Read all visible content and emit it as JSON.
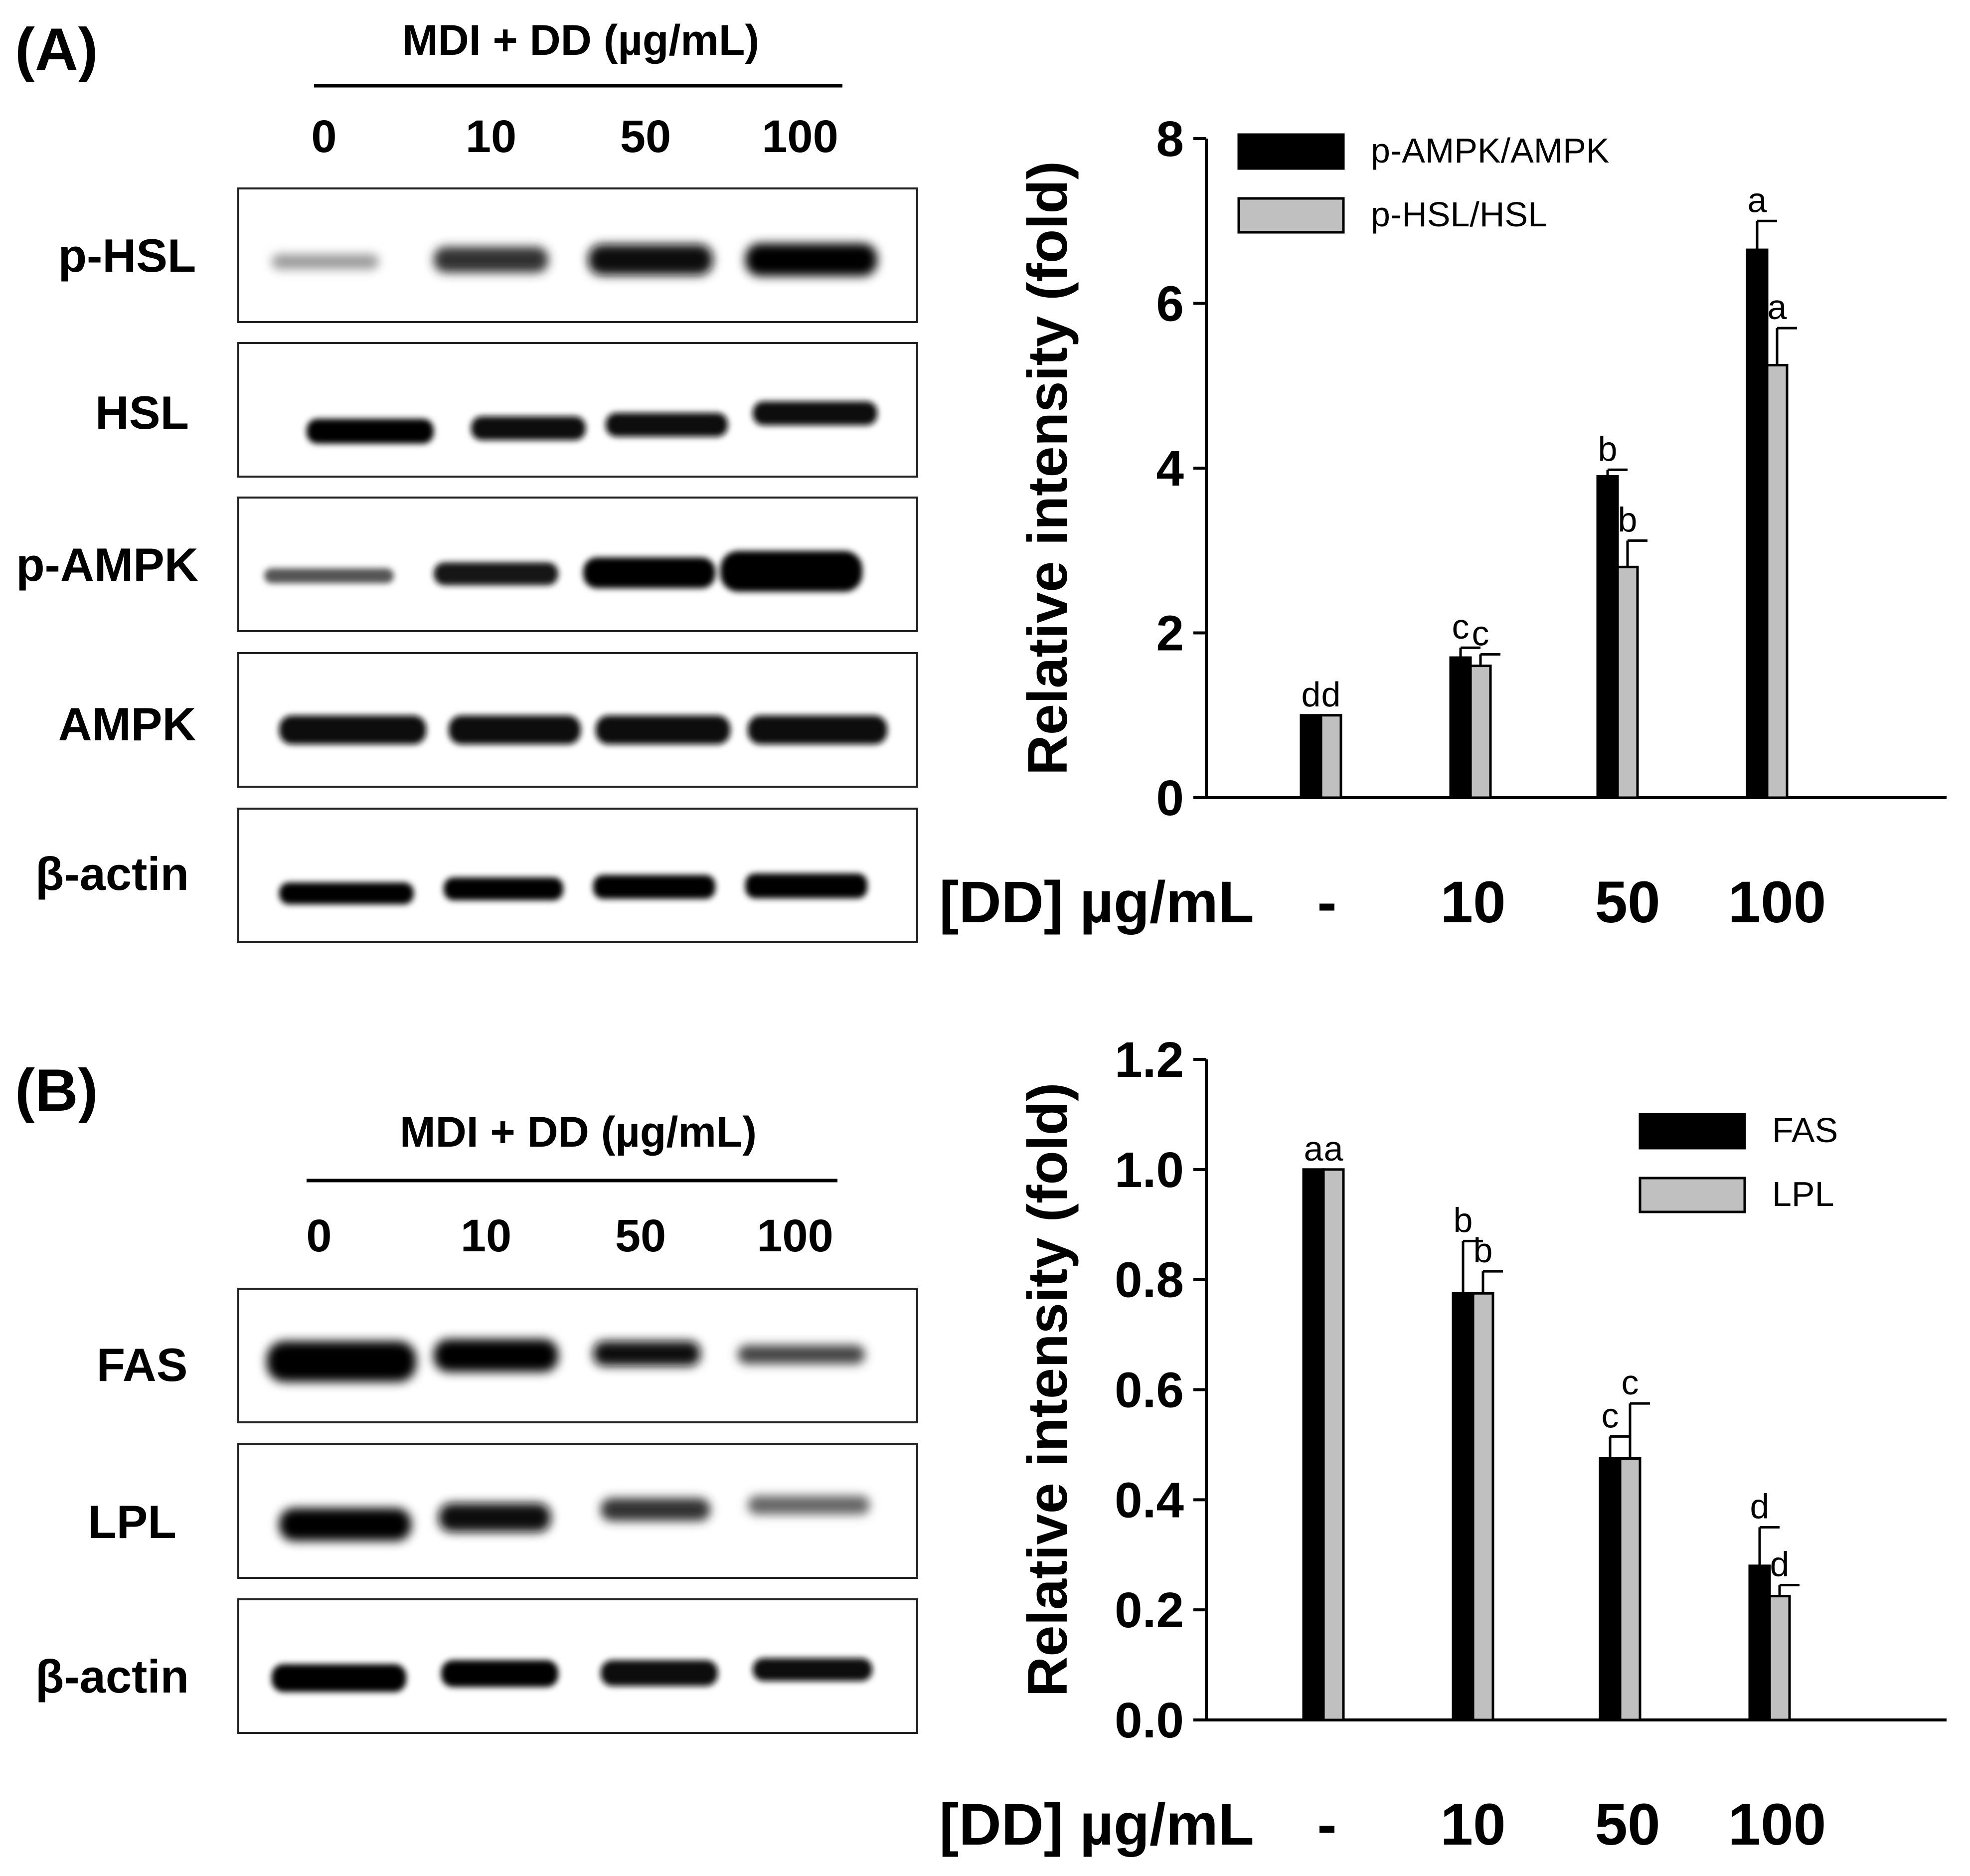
{
  "panels": [
    {
      "label": "(A)",
      "blot": {
        "header": "MDI  + DD (µg/mL)",
        "lanes": [
          "0",
          "10",
          "50",
          "100"
        ],
        "rows": [
          "p-HSL",
          "HSL",
          "p-AMPK",
          "AMPK",
          "β-actin"
        ]
      }
    },
    {
      "label": "(B)",
      "blot": {
        "header": "MDI  + DD (µg/mL)",
        "lanes": [
          "0",
          "10",
          "50",
          "100"
        ],
        "rows": [
          "FAS",
          "LPL",
          "β-actin"
        ]
      }
    }
  ],
  "chart_data": [
    {
      "type": "bar",
      "panel": "A",
      "title": "",
      "xlabel": "[DD] µg/mL",
      "ylabel": "Relative intensity (fold)",
      "categories": [
        "-",
        "10",
        "50",
        "100"
      ],
      "ylim": [
        0,
        8
      ],
      "yticks": [
        "0",
        "2",
        "4",
        "6",
        "8"
      ],
      "legend_position": "top-left",
      "colors": [
        "#000000",
        "#c0c0c0"
      ],
      "series": [
        {
          "name": "p-AMPK/AMPK",
          "values": [
            1.0,
            1.7,
            3.9,
            6.65
          ],
          "errors": [
            0.0,
            0.12,
            0.08,
            0.35
          ],
          "sig": [
            "d",
            "c",
            "b",
            "a"
          ]
        },
        {
          "name": "p-HSL/HSL",
          "values": [
            1.0,
            1.6,
            2.8,
            5.25
          ],
          "errors": [
            0.0,
            0.14,
            0.32,
            0.45
          ],
          "sig": [
            "d",
            "c",
            "b",
            "a"
          ]
        }
      ]
    },
    {
      "type": "bar",
      "panel": "B",
      "title": "",
      "xlabel": "[DD] µg/mL",
      "ylabel": "Relative intensity (fold)",
      "categories": [
        "-",
        "10",
        "50",
        "100"
      ],
      "ylim": [
        0,
        1.2
      ],
      "yticks": [
        "0.0",
        "0.2",
        "0.4",
        "0.6",
        "0.8",
        "1.0",
        "1.2"
      ],
      "legend_position": "top-right",
      "colors": [
        "#000000",
        "#c0c0c0"
      ],
      "series": [
        {
          "name": "FAS",
          "values": [
            1.0,
            0.775,
            0.475,
            0.28
          ],
          "errors": [
            0.0,
            0.095,
            0.04,
            0.07
          ],
          "sig": [
            "a",
            "b",
            "c",
            "d"
          ]
        },
        {
          "name": "LPL",
          "values": [
            1.0,
            0.775,
            0.475,
            0.225
          ],
          "errors": [
            0.0,
            0.04,
            0.1,
            0.02
          ],
          "sig": [
            "a",
            "b",
            "c",
            "d"
          ]
        }
      ]
    }
  ]
}
